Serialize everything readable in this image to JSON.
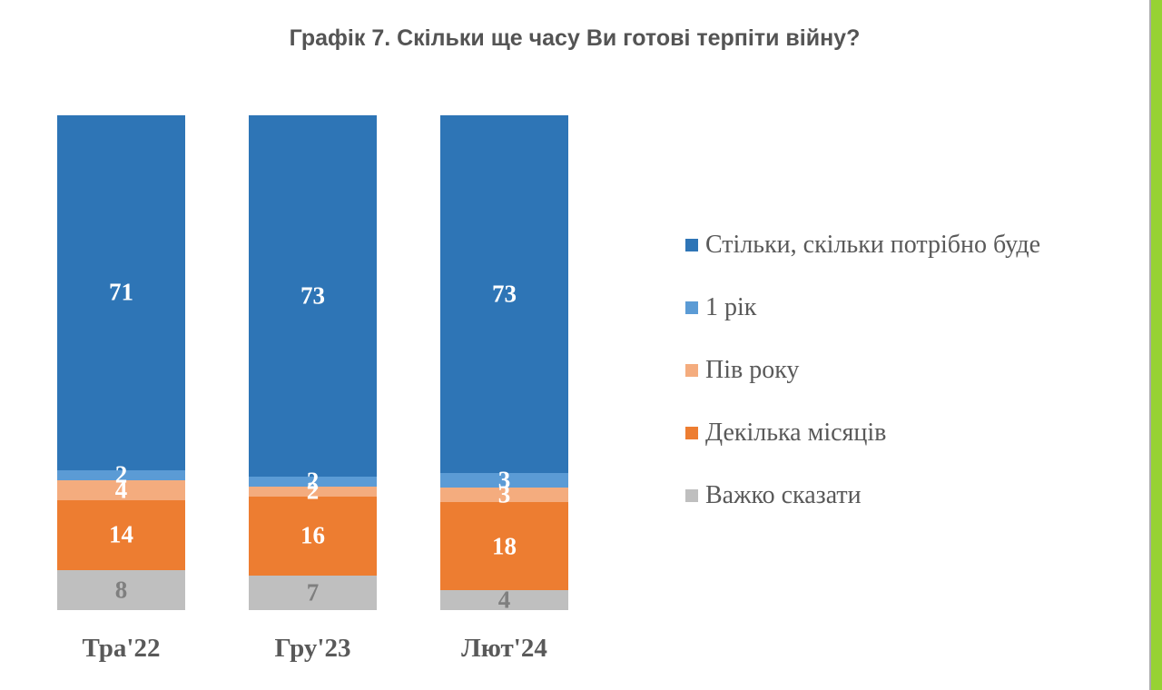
{
  "chart_data": {
    "type": "bar",
    "stacked": true,
    "orientation": "vertical",
    "title": "Графік 7. Скільки ще часу Ви готові терпіти війну?",
    "xlabel": "",
    "ylabel": "",
    "value_unit": "percent",
    "categories": [
      "Тра'22",
      "Гру'23",
      "Лют'24"
    ],
    "series": [
      {
        "key": "as-long-as-needed",
        "name": "Стільки, скільки потрібно буде",
        "color": "#2E75B6",
        "label_color": "#FFFFFF",
        "values": [
          71,
          73,
          73
        ]
      },
      {
        "key": "one-year",
        "name": "1 рік",
        "color": "#5B9BD5",
        "label_color": "#FFFFFF",
        "values": [
          2,
          2,
          3
        ]
      },
      {
        "key": "half-year",
        "name": "Пів року",
        "color": "#F4AC7E",
        "label_color": "#FFFFFF",
        "values": [
          4,
          2,
          3
        ]
      },
      {
        "key": "several-months",
        "name": "Декілька місяців",
        "color": "#ED7D31",
        "label_color": "#FFFFFF",
        "values": [
          14,
          16,
          18
        ]
      },
      {
        "key": "hard-to-say",
        "name": "Важко сказати",
        "color": "#BFBFBF",
        "label_color": "#7F7F7F",
        "values": [
          8,
          7,
          4
        ]
      }
    ],
    "grid": false,
    "axis_lines": false,
    "legend_position": "right"
  },
  "accent": {
    "stripe_green": "#97D234",
    "stripe_border_gray": "#ABABAB"
  }
}
